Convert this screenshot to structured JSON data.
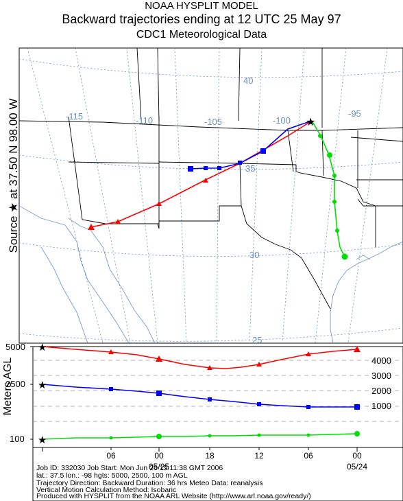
{
  "header": {
    "line1": "NOAA HYSPLIT MODEL",
    "line2": "Backward trajectories ending at 12 UTC 25 May 97",
    "line3": "CDC1 Meteorological Data"
  },
  "side_label": "Source ★ at   37.50 N   98.00 W",
  "map": {
    "lon_labels": [
      "-115",
      "-110",
      "-105",
      "-100",
      "-95"
    ],
    "lat_labels": [
      "40",
      "35",
      "30",
      "25"
    ],
    "colors": {
      "grid": "#6b8fbf",
      "borders": "#000000",
      "coast": "#7a9ac8"
    }
  },
  "trajectories": [
    {
      "name": "5000 m",
      "color": "#ff0000",
      "marker": "triangle",
      "start_height_m": 5000
    },
    {
      "name": "2500 m",
      "color": "#0000ff",
      "marker": "square",
      "start_height_m": 2500
    },
    {
      "name": "100 m",
      "color": "#00dd00",
      "marker": "circle",
      "start_height_m": 100
    }
  ],
  "profile": {
    "ylabel": "Meters AGL",
    "left_ticks": [
      "5000",
      "2500",
      "100"
    ],
    "right_ticks": [
      "4000",
      "3000",
      "2000",
      "1000"
    ],
    "time_ticks": [
      "06",
      "00",
      "18",
      "12",
      "06",
      "00"
    ],
    "date_labels": [
      "05/25",
      "05/24"
    ]
  },
  "footer": {
    "line1": "Job ID: 332030      Job Start: Mon Jun 26 15:11:38 GMT 2006",
    "line2": "lat.: 37.5  lon.: -98  hgts: 5000, 2500, 100 m AGL",
    "line3": "Trajectory Direction: Backward     Duration: 36 hrs     Meteo Data: reanalysis",
    "line4": "Vertical Motion Calculation Method: Isobaric",
    "line5": "Produced with HYSPLIT from the NOAA ARL Website (http://www.arl.noaa.gov/ready/)"
  }
}
